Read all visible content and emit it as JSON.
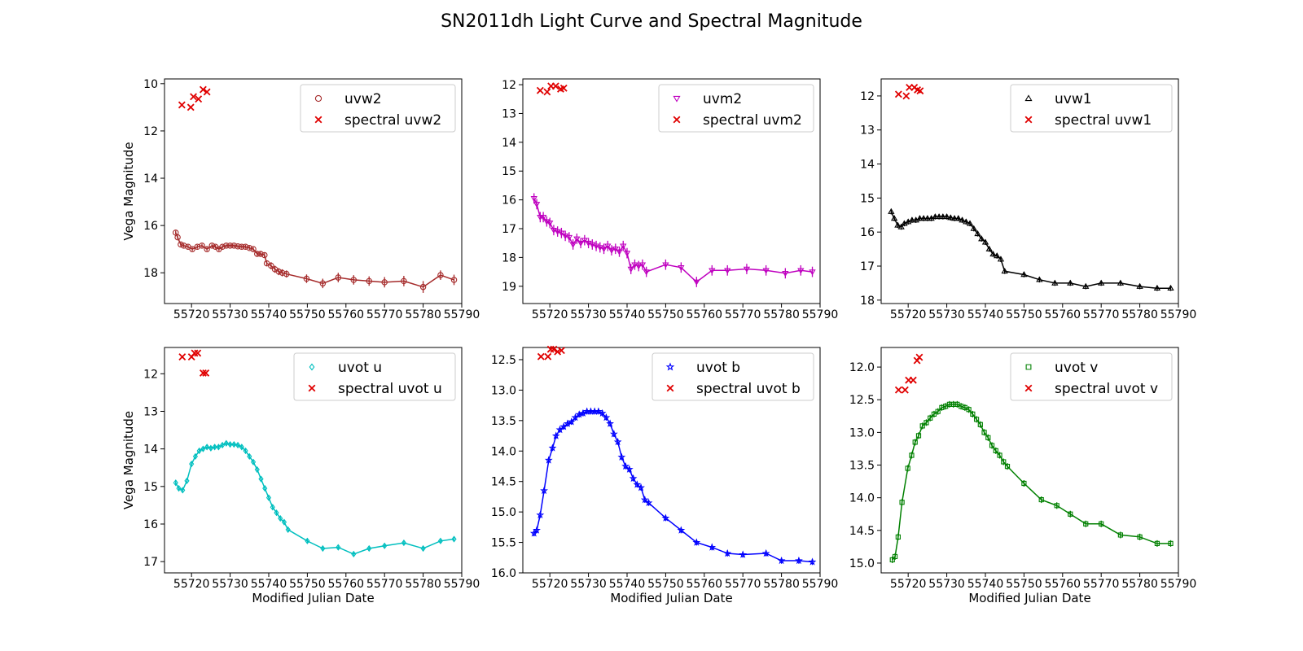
{
  "chart_data": {
    "type": "line",
    "title": "SN2011dh Light Curve and Spectral Magnitude",
    "y_inverted": true,
    "grid": false,
    "legend_placement": "upper right",
    "panels": [
      {
        "name": "uvw2",
        "color": "#a52a2a",
        "marker": "circle",
        "ylabel": "Vega Magnitude",
        "xlabel": "",
        "xlim": [
          55713,
          55790
        ],
        "ylim": [
          19.3,
          9.8
        ],
        "yticks": [
          "10",
          "12",
          "14",
          "16",
          "18"
        ],
        "xticks": [
          "55720",
          "55730",
          "55740",
          "55750",
          "55760",
          "55770",
          "55780",
          "55790"
        ],
        "legend": [
          "uvw2",
          "spectral uvw2"
        ],
        "series": {
          "name": "uvw2",
          "x": [
            55715.9,
            55716.4,
            55717.2,
            55718.0,
            55719.1,
            55720.2,
            55721.5,
            55722.7,
            55724.0,
            55725.3,
            55726.2,
            55727.1,
            55728.0,
            55729.0,
            55730.0,
            55731.0,
            55732.0,
            55733.0,
            55734.0,
            55735.0,
            55736.0,
            55737.0,
            55737.9,
            55738.9,
            55739.5,
            55740.6,
            55741.6,
            55742.6,
            55743.5,
            55744.6,
            55749.8,
            55754.0,
            55758.0,
            55762.0,
            55766.0,
            55770.0,
            55775.0,
            55780.0,
            55784.5,
            55788.0
          ],
          "y": [
            16.3,
            16.5,
            16.8,
            16.85,
            16.9,
            17.0,
            16.9,
            16.85,
            17.0,
            16.85,
            16.9,
            17.0,
            16.9,
            16.85,
            16.85,
            16.85,
            16.88,
            16.9,
            16.9,
            16.95,
            17.0,
            17.2,
            17.2,
            17.25,
            17.6,
            17.7,
            17.85,
            17.95,
            18.0,
            18.05,
            18.25,
            18.45,
            18.2,
            18.3,
            18.35,
            18.4,
            18.35,
            18.6,
            18.1,
            18.3
          ],
          "err": [
            0.08,
            0.08,
            0.08,
            0.08,
            0.08,
            0.08,
            0.08,
            0.08,
            0.08,
            0.08,
            0.08,
            0.08,
            0.08,
            0.08,
            0.08,
            0.08,
            0.08,
            0.08,
            0.08,
            0.08,
            0.08,
            0.1,
            0.1,
            0.1,
            0.12,
            0.15,
            0.15,
            0.15,
            0.15,
            0.15,
            0.18,
            0.2,
            0.2,
            0.2,
            0.2,
            0.22,
            0.22,
            0.25,
            0.2,
            0.22
          ]
        },
        "spectral": {
          "name": "spectral uvw2",
          "x": [
            55717.5,
            55719.8,
            55720.5,
            55721.8,
            55723.0,
            55724.0
          ],
          "y": [
            10.9,
            11.0,
            10.55,
            10.65,
            10.25,
            10.35
          ]
        }
      },
      {
        "name": "uvm2",
        "color": "#bf00bf",
        "marker": "triangle-down",
        "ylabel": "",
        "xlabel": "",
        "xlim": [
          55713,
          55790
        ],
        "ylim": [
          19.6,
          11.8
        ],
        "yticks": [
          "12",
          "13",
          "14",
          "15",
          "16",
          "17",
          "18",
          "19"
        ],
        "xticks": [
          "55720",
          "55730",
          "55740",
          "55750",
          "55760",
          "55770",
          "55780",
          "55790"
        ],
        "legend": [
          "uvm2",
          "spectral uvm2"
        ],
        "series": {
          "name": "uvm2",
          "x": [
            55715.9,
            55716.6,
            55717.5,
            55718.3,
            55719.2,
            55720.0,
            55721.0,
            55722.0,
            55723.0,
            55724.0,
            55725.0,
            55726.0,
            55727.0,
            55728.0,
            55729.0,
            55730.0,
            55731.0,
            55732.0,
            55733.0,
            55734.0,
            55735.0,
            55736.0,
            55737.0,
            55738.0,
            55739.0,
            55740.0,
            55741.0,
            55742.0,
            55743.0,
            55744.0,
            55745.0,
            55750.0,
            55754.0,
            55758.0,
            55762.0,
            55766.0,
            55771.0,
            55776.0,
            55781.0,
            55785.0,
            55788.0
          ],
          "y": [
            15.95,
            16.15,
            16.6,
            16.6,
            16.75,
            16.8,
            17.05,
            17.1,
            17.15,
            17.25,
            17.3,
            17.55,
            17.35,
            17.5,
            17.4,
            17.5,
            17.55,
            17.6,
            17.65,
            17.7,
            17.6,
            17.75,
            17.7,
            17.8,
            17.6,
            17.85,
            18.4,
            18.25,
            18.3,
            18.25,
            18.5,
            18.25,
            18.35,
            18.85,
            18.45,
            18.45,
            18.4,
            18.45,
            18.55,
            18.45,
            18.5
          ]
        },
        "spectral": {
          "name": "spectral uvm2",
          "x": [
            55717.5,
            55719.3,
            55720.3,
            55721.5,
            55722.8,
            55723.6
          ],
          "y": [
            12.2,
            12.25,
            12.05,
            12.05,
            12.15,
            12.12
          ]
        }
      },
      {
        "name": "uvw1",
        "color": "#000000",
        "marker": "triangle-up",
        "ylabel": "",
        "xlabel": "",
        "xlim": [
          55713,
          55790
        ],
        "ylim": [
          18.1,
          11.5
        ],
        "yticks": [
          "12",
          "13",
          "14",
          "15",
          "16",
          "17",
          "18"
        ],
        "xticks": [
          "55720",
          "55730",
          "55740",
          "55750",
          "55760",
          "55770",
          "55780",
          "55790"
        ],
        "legend": [
          "uvw1",
          "spectral uvw1"
        ],
        "series": {
          "name": "uvw1",
          "x": [
            55715.6,
            55716.4,
            55717.3,
            55718.2,
            55719.0,
            55720.0,
            55721.0,
            55722.0,
            55723.0,
            55724.0,
            55725.0,
            55726.0,
            55727.0,
            55728.0,
            55729.0,
            55730.0,
            55731.0,
            55732.0,
            55733.0,
            55734.0,
            55735.0,
            55736.0,
            55737.0,
            55738.0,
            55739.0,
            55740.0,
            55741.0,
            55742.0,
            55743.0,
            55744.0,
            55745.0,
            55750.0,
            55754.0,
            55758.0,
            55762.0,
            55766.0,
            55770.0,
            55775.0,
            55780.0,
            55784.5,
            55788.0
          ],
          "y": [
            15.4,
            15.6,
            15.8,
            15.85,
            15.75,
            15.7,
            15.65,
            15.65,
            15.6,
            15.6,
            15.6,
            15.6,
            15.55,
            15.55,
            15.55,
            15.55,
            15.58,
            15.6,
            15.6,
            15.65,
            15.7,
            15.75,
            15.9,
            16.05,
            16.2,
            16.3,
            16.5,
            16.65,
            16.7,
            16.8,
            17.15,
            17.25,
            17.4,
            17.5,
            17.5,
            17.6,
            17.5,
            17.5,
            17.6,
            17.65,
            17.65
          ]
        },
        "spectral": {
          "name": "spectral uvw1",
          "x": [
            55717.5,
            55719.5,
            55720.3,
            55721.6,
            55722.4,
            55723.1
          ],
          "y": [
            11.95,
            12.0,
            11.75,
            11.75,
            11.82,
            11.85
          ]
        }
      },
      {
        "name": "uvot u",
        "color": "#00bfbf",
        "marker": "diamond",
        "ylabel": "Vega Magnitude",
        "xlabel": "Modified Julian Date",
        "xlim": [
          55713,
          55790
        ],
        "ylim": [
          17.3,
          11.3
        ],
        "yticks": [
          "12",
          "13",
          "14",
          "15",
          "16",
          "17"
        ],
        "xticks": [
          "55720",
          "55730",
          "55740",
          "55750",
          "55760",
          "55770",
          "55780",
          "55790"
        ],
        "legend": [
          "uvot u",
          "spectral uvot u"
        ],
        "series": {
          "name": "uvot u",
          "x": [
            55715.9,
            55716.7,
            55717.7,
            55718.8,
            55720.0,
            55721.0,
            55722.0,
            55723.0,
            55724.0,
            55725.0,
            55726.0,
            55727.0,
            55728.0,
            55729.0,
            55730.0,
            55731.0,
            55732.0,
            55733.0,
            55734.0,
            55735.0,
            55736.0,
            55737.0,
            55738.0,
            55739.0,
            55740.0,
            55741.0,
            55742.0,
            55743.0,
            55744.0,
            55745.0,
            55750.0,
            55754.0,
            55758.0,
            55762.0,
            55766.0,
            55770.0,
            55775.0,
            55780.0,
            55784.5,
            55788.0
          ],
          "y": [
            14.9,
            15.05,
            15.1,
            14.85,
            14.4,
            14.2,
            14.05,
            14.0,
            13.95,
            13.98,
            13.95,
            13.95,
            13.9,
            13.85,
            13.88,
            13.88,
            13.9,
            13.95,
            14.05,
            14.2,
            14.35,
            14.55,
            14.8,
            15.05,
            15.3,
            15.55,
            15.7,
            15.85,
            15.95,
            16.15,
            16.45,
            16.65,
            16.62,
            16.8,
            16.65,
            16.58,
            16.5,
            16.65,
            16.45,
            16.4
          ]
        },
        "spectral": {
          "name": "spectral uvot u",
          "x": [
            55717.6,
            55720.0,
            55720.8,
            55721.6,
            55723.0,
            55723.7
          ],
          "y": [
            11.55,
            11.55,
            11.45,
            11.45,
            11.98,
            11.98
          ]
        }
      },
      {
        "name": "uvot b",
        "color": "#0000ff",
        "marker": "star",
        "ylabel": "",
        "xlabel": "Modified Julian Date",
        "xlim": [
          55713,
          55790
        ],
        "ylim": [
          16.0,
          12.3
        ],
        "yticks": [
          "12.5",
          "13.0",
          "13.5",
          "14.0",
          "14.5",
          "15.0",
          "15.5",
          "16.0"
        ],
        "xticks": [
          "55720",
          "55730",
          "55740",
          "55750",
          "55760",
          "55770",
          "55780",
          "55790"
        ],
        "legend": [
          "uvot b",
          "spectral uvot b"
        ],
        "series": {
          "name": "uvot b",
          "x": [
            55715.9,
            55716.6,
            55717.5,
            55718.5,
            55719.7,
            55720.7,
            55721.6,
            55722.6,
            55723.6,
            55724.6,
            55725.6,
            55726.6,
            55727.6,
            55728.6,
            55729.6,
            55730.6,
            55731.6,
            55732.6,
            55733.6,
            55734.6,
            55735.6,
            55736.6,
            55737.6,
            55738.6,
            55739.6,
            55740.6,
            55741.6,
            55742.6,
            55743.6,
            55744.6,
            55745.6,
            55750.0,
            55754.0,
            55758.0,
            55762.0,
            55766.0,
            55770.0,
            55776.0,
            55780.0,
            55784.5,
            55788.0
          ],
          "y": [
            15.35,
            15.3,
            15.05,
            14.65,
            14.15,
            13.95,
            13.75,
            13.65,
            13.6,
            13.55,
            13.52,
            13.45,
            13.4,
            13.38,
            13.35,
            13.35,
            13.35,
            13.35,
            13.38,
            13.45,
            13.55,
            13.72,
            13.85,
            14.1,
            14.25,
            14.3,
            14.45,
            14.55,
            14.6,
            14.8,
            14.85,
            15.1,
            15.3,
            15.5,
            15.58,
            15.68,
            15.7,
            15.68,
            15.8,
            15.8,
            15.82
          ]
        },
        "spectral": {
          "name": "spectral uvot b",
          "x": [
            55717.7,
            55719.5,
            55720.2,
            55721.0,
            55722.0,
            55723.0
          ],
          "y": [
            12.45,
            12.45,
            12.33,
            12.33,
            12.37,
            12.35
          ]
        }
      },
      {
        "name": "uvot v",
        "color": "#008000",
        "marker": "square",
        "ylabel": "",
        "xlabel": "Modified Julian Date",
        "xlim": [
          55713,
          55790
        ],
        "ylim": [
          15.15,
          11.7
        ],
        "yticks": [
          "12.0",
          "12.5",
          "13.0",
          "13.5",
          "14.0",
          "14.5",
          "15.0"
        ],
        "xticks": [
          "55720",
          "55730",
          "55740",
          "55750",
          "55760",
          "55770",
          "55780",
          "55790"
        ],
        "legend": [
          "uvot v",
          "spectral uvot v"
        ],
        "series": {
          "name": "uvot v",
          "x": [
            55715.9,
            55716.6,
            55717.4,
            55718.4,
            55719.9,
            55720.9,
            55721.8,
            55722.7,
            55723.7,
            55724.7,
            55725.7,
            55726.7,
            55727.7,
            55728.7,
            55729.7,
            55730.7,
            55731.7,
            55732.7,
            55733.7,
            55734.7,
            55735.7,
            55736.7,
            55737.7,
            55738.7,
            55739.7,
            55740.7,
            55741.7,
            55742.7,
            55743.7,
            55744.7,
            55745.7,
            55750.0,
            55754.5,
            55758.5,
            55762.0,
            55766.0,
            55770.0,
            55775.0,
            55780.0,
            55784.5,
            55788.0
          ],
          "y": [
            14.95,
            14.9,
            14.6,
            14.07,
            13.55,
            13.35,
            13.15,
            13.05,
            12.9,
            12.85,
            12.78,
            12.72,
            12.68,
            12.62,
            12.6,
            12.57,
            12.57,
            12.57,
            12.6,
            12.62,
            12.65,
            12.72,
            12.8,
            12.88,
            13.0,
            13.08,
            13.2,
            13.28,
            13.35,
            13.45,
            13.52,
            13.78,
            14.03,
            14.12,
            14.25,
            14.4,
            14.4,
            14.57,
            14.6,
            14.7,
            14.7
          ]
        },
        "spectral": {
          "name": "spectral uvot v",
          "x": [
            55717.5,
            55719.2,
            55720.1,
            55721.3,
            55722.3,
            55722.9
          ],
          "y": [
            12.35,
            12.35,
            12.2,
            12.2,
            11.9,
            11.85
          ]
        }
      }
    ]
  }
}
